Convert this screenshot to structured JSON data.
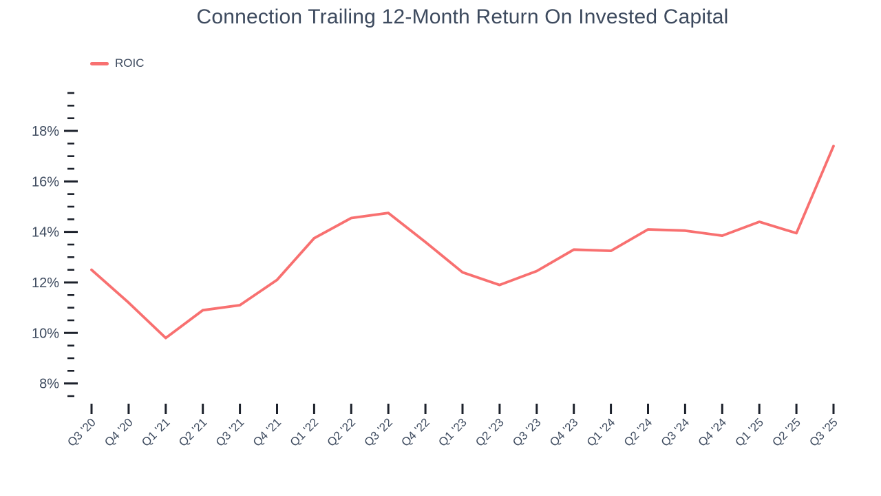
{
  "header": {
    "title": "Connection Trailing 12-Month Return On Invested Capital"
  },
  "legend": {
    "label": "ROIC"
  },
  "colors": {
    "line": "#f87070",
    "text": "#3d4a5e",
    "tick": "#1c212b",
    "background": "#ffffff"
  },
  "chart_data": {
    "type": "line",
    "title": "Connection Trailing 12-Month Return On Invested Capital",
    "categories": [
      "Q3 '20",
      "Q4 '20",
      "Q1 '21",
      "Q2 '21",
      "Q3 '21",
      "Q4 '21",
      "Q1 '22",
      "Q2 '22",
      "Q3 '22",
      "Q4 '22",
      "Q1 '23",
      "Q2 '23",
      "Q3 '23",
      "Q4 '23",
      "Q1 '24",
      "Q2 '24",
      "Q3 '24",
      "Q4 '24",
      "Q1 '25",
      "Q2 '25",
      "Q3 '25"
    ],
    "series": [
      {
        "name": "ROIC",
        "values": [
          12.5,
          11.2,
          9.8,
          10.9,
          11.1,
          12.1,
          13.75,
          14.55,
          14.75,
          13.6,
          12.4,
          11.9,
          12.45,
          13.3,
          13.25,
          14.1,
          14.05,
          13.85,
          14.4,
          13.95,
          17.4
        ]
      }
    ],
    "xlabel": "",
    "ylabel": "",
    "y_axis": {
      "tick_min": 7.5,
      "tick_max": 19.5,
      "tick_step": 0.5,
      "label_values": [
        8,
        10,
        12,
        14,
        16,
        18
      ],
      "label_format": "percent",
      "ylim": [
        7.5,
        19.5
      ]
    },
    "grid": false,
    "axis_lines": false,
    "legend_position": "top-left"
  }
}
